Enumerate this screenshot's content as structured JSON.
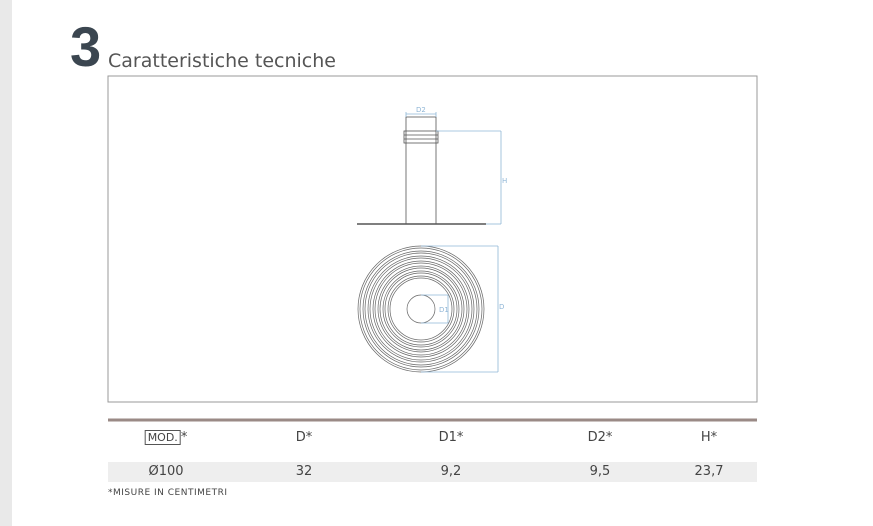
{
  "section": {
    "number": "3",
    "title": "Caratteristiche tecniche"
  },
  "drawing": {
    "labels": {
      "d2": "D2",
      "h": "H",
      "d": "D",
      "d1": "D1"
    }
  },
  "table": {
    "header": [
      "MOD.",
      "D*",
      "D1*",
      "D2*",
      "H*"
    ],
    "header_suffix": "*",
    "rows": [
      [
        "Ø100",
        "32",
        "9,2",
        "9,5",
        "23,7"
      ]
    ]
  },
  "footnote": "*MISURE IN CENTIMETRI"
}
